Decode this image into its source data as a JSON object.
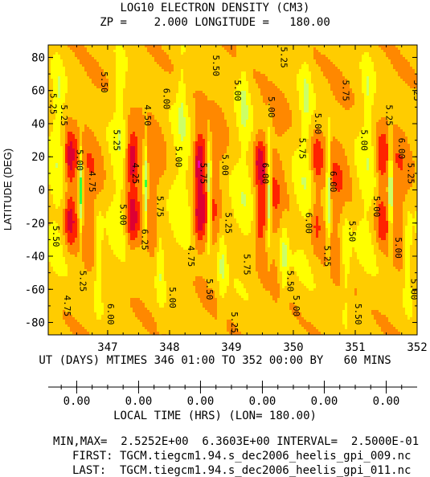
{
  "title": "LOG10 ELECTRON DENSITY (CM3)",
  "subtitle": "ZP =    2.000 LONGITUDE =   180.00",
  "chart_data": {
    "type": "heatmap",
    "title": "LOG10 ELECTRON DENSITY (CM3)",
    "ylabel": "LATITUDE (DEG)",
    "xlabel": "UT (DAYS) MTIMES 346 01:00 TO 352 00:00 BY   60 MINS",
    "x_ticks": [
      "347",
      "348",
      "349",
      "350",
      "351",
      "352"
    ],
    "y_ticks": [
      "80",
      "60",
      "40",
      "20",
      "0",
      "-20",
      "-40",
      "-60",
      "-80"
    ],
    "xlim": [
      346.04,
      352.0
    ],
    "ylim": [
      -87.5,
      87.5
    ],
    "contour_levels": [
      4.25,
      4.5,
      4.75,
      5.0,
      5.25,
      5.5,
      5.75,
      6.0,
      6.25
    ],
    "colors": [
      "#00aa33",
      "#33ff44",
      "#ccff66",
      "#ffff00",
      "#ffcc00",
      "#ff8800",
      "#ff2200",
      "#dd0033",
      "#ee00aa",
      "#ff00ff"
    ],
    "contour_labels": [
      "5.25",
      "5.50",
      "5.25",
      "5.00",
      "5.50",
      "5.25",
      "5.25",
      "4.75",
      "4.50",
      "4.25",
      "5.00",
      "6.25",
      "5.75",
      "5.00",
      "4.75",
      "6.00",
      "5.75",
      "5.50",
      "5.00",
      "5.25",
      "5.00",
      "5.75",
      "6.00",
      "5.00",
      "5.50",
      "5.75",
      "6.00",
      "5.00",
      "5.25",
      "5.75",
      "6.00",
      "5.50",
      "5.00",
      "5.00",
      "5.25",
      "5.00",
      "5.25",
      "5.00",
      "5.25",
      "4.75",
      "6.00",
      "5.00",
      "5.25",
      "5.00",
      "5.50",
      "6.00",
      "5.25",
      "5.50"
    ]
  },
  "local_time": {
    "ticks": [
      "0.00",
      "0.00",
      "0.00",
      "0.00",
      "0.00",
      "0.00"
    ],
    "label": "LOCAL TIME (HRS) (LON= 180.00)"
  },
  "footer": {
    "minmax": "MIN,MAX=  2.5252E+00  6.3603E+00 INTERVAL=  2.5000E-01",
    "first": "FIRST: TGCM.tiegcm1.94.s_dec2006_heelis_gpi_009.nc",
    "last": "LAST:  TGCM.tiegcm1.94.s_dec2006_heelis_gpi_011.nc"
  }
}
